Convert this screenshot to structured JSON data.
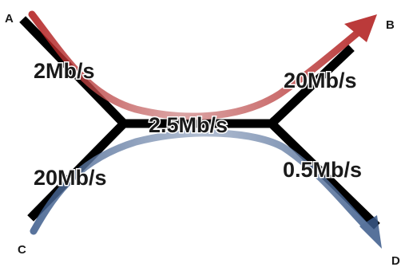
{
  "nodes": {
    "a": "A",
    "b": "B",
    "c": "C",
    "d": "D"
  },
  "links": {
    "a_to_junction": "2Mb/s",
    "c_to_junction": "20Mb/s",
    "shared": "2.5Mb/s",
    "junction_to_b": "20Mb/s",
    "junction_to_d": "0.5Mb/s"
  },
  "flows": {
    "a_to_b_color": "#b01818",
    "c_to_d_color": "#3a5a8a"
  },
  "colors": {
    "link": "#000000"
  }
}
